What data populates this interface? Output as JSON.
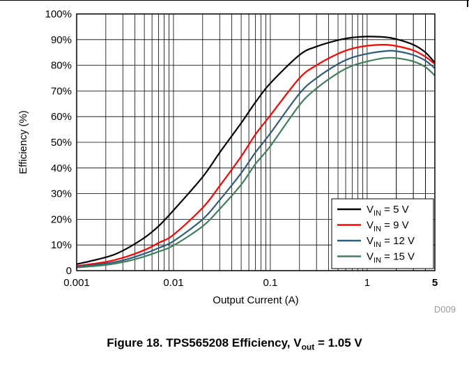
{
  "chart_data": {
    "type": "line",
    "xscale": "log",
    "xlim": [
      0.001,
      5
    ],
    "ylim": [
      0,
      100
    ],
    "xlabel": "Output Current (A)",
    "ylabel": "Efficiency (%)",
    "xticks": [
      {
        "value": 0.001,
        "label": "0.001"
      },
      {
        "value": 0.01,
        "label": "0.01"
      },
      {
        "value": 0.1,
        "label": "0.1"
      },
      {
        "value": 1,
        "label": "1"
      },
      {
        "value": 5,
        "label": "5"
      }
    ],
    "yticks": [
      {
        "value": 0,
        "label": "0"
      },
      {
        "value": 10,
        "label": "10%"
      },
      {
        "value": 20,
        "label": "20%"
      },
      {
        "value": 30,
        "label": "30%"
      },
      {
        "value": 40,
        "label": "40%"
      },
      {
        "value": 50,
        "label": "50%"
      },
      {
        "value": 60,
        "label": "60%"
      },
      {
        "value": 70,
        "label": "70%"
      },
      {
        "value": 80,
        "label": "80%"
      },
      {
        "value": 90,
        "label": "90%"
      },
      {
        "value": 100,
        "label": "100%"
      }
    ],
    "grid": true,
    "legend_position": "bottom-right",
    "series": [
      {
        "name_main": "V",
        "name_sub": "IN",
        "name_rest": " = 5 V",
        "color": "#000000",
        "x": [
          0.001,
          0.002,
          0.003,
          0.005,
          0.007,
          0.01,
          0.02,
          0.03,
          0.05,
          0.07,
          0.1,
          0.2,
          0.3,
          0.5,
          0.7,
          1,
          1.5,
          2,
          3,
          4,
          5
        ],
        "y": [
          2.5,
          5.2,
          7.8,
          12.8,
          17.3,
          23.5,
          36.5,
          46,
          57.5,
          65.5,
          73,
          84,
          87.3,
          89.8,
          90.8,
          91.2,
          91,
          90.2,
          88,
          85,
          81
        ]
      },
      {
        "name_main": "V",
        "name_sub": "IN",
        "name_rest": " = 9 V",
        "color": "#ff0000",
        "x": [
          0.001,
          0.002,
          0.003,
          0.005,
          0.007,
          0.01,
          0.02,
          0.03,
          0.05,
          0.07,
          0.1,
          0.2,
          0.3,
          0.5,
          0.7,
          1,
          1.5,
          2,
          3,
          4,
          5
        ],
        "y": [
          1.8,
          3.4,
          5,
          8,
          10.8,
          14,
          24.5,
          33,
          44.5,
          53,
          60.5,
          75,
          80,
          84.5,
          86.5,
          87.6,
          88,
          87.5,
          85.8,
          83.3,
          80.5
        ]
      },
      {
        "name_main": "V",
        "name_sub": "IN",
        "name_rest": " = 12 V",
        "color": "#2e5c7a",
        "x": [
          0.001,
          0.002,
          0.003,
          0.005,
          0.007,
          0.01,
          0.02,
          0.03,
          0.05,
          0.07,
          0.1,
          0.2,
          0.3,
          0.5,
          0.7,
          1,
          1.5,
          2,
          3,
          4,
          5
        ],
        "y": [
          1.5,
          2.8,
          4,
          6.6,
          8.8,
          11.5,
          20,
          27.5,
          38,
          46,
          53.5,
          69,
          75,
          80.5,
          83,
          84.5,
          85.5,
          85.5,
          84,
          81.8,
          78.8
        ]
      },
      {
        "name_main": "V",
        "name_sub": "IN",
        "name_rest": " = 15 V",
        "color": "#3f7f5a",
        "x": [
          0.001,
          0.002,
          0.003,
          0.005,
          0.007,
          0.01,
          0.02,
          0.03,
          0.05,
          0.07,
          0.1,
          0.2,
          0.3,
          0.5,
          0.7,
          1,
          1.5,
          2,
          3,
          4,
          5
        ],
        "y": [
          1.2,
          2.2,
          3.3,
          5.5,
          7.4,
          9.8,
          17.3,
          24,
          33.5,
          41.5,
          48.5,
          64.5,
          71,
          77,
          79.8,
          81.5,
          82.8,
          82.8,
          81.5,
          79.3,
          76
        ]
      }
    ]
  },
  "watermark": "D009",
  "caption": {
    "prefix": "Figure 18. TPS565208 Efficiency, V",
    "sub": "out",
    "suffix": " = 1.05 V"
  }
}
